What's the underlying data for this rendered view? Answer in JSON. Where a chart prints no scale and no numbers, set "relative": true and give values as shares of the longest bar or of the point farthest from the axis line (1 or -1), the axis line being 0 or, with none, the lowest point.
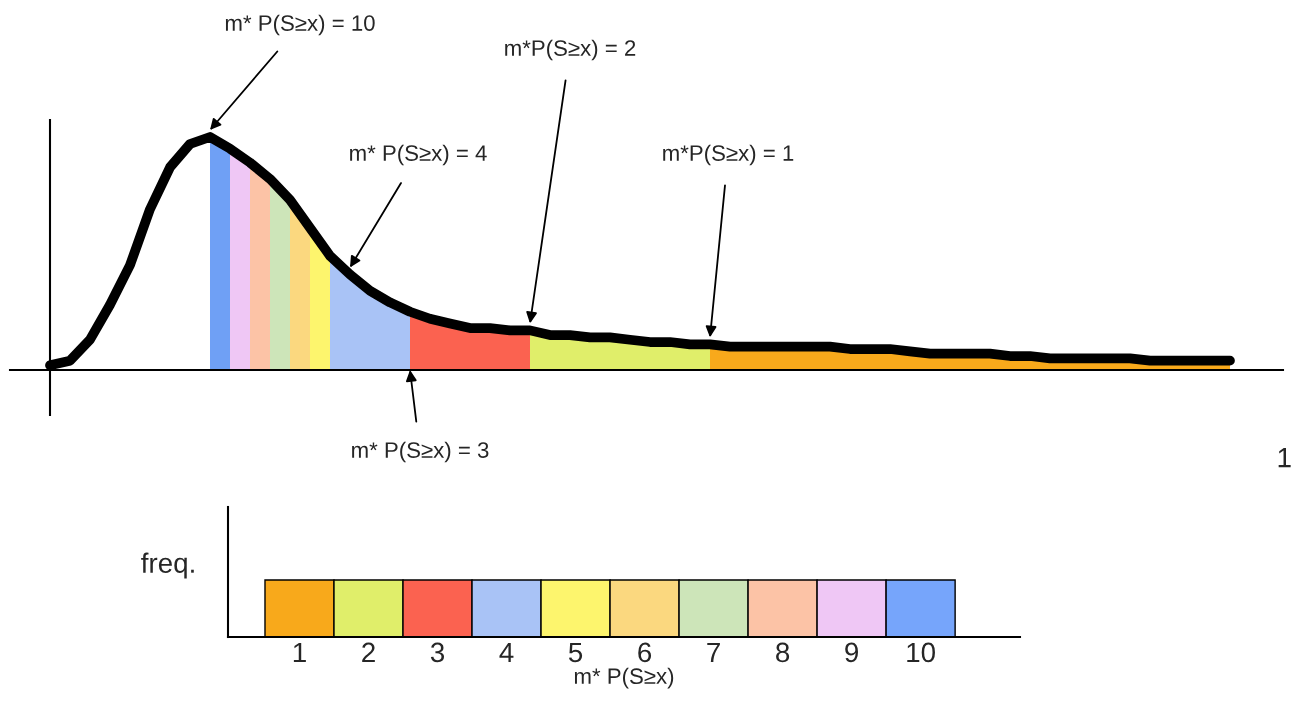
{
  "chart_data": [
    {
      "type": "area",
      "relative": true,
      "tick_labels": false,
      "categories": [
        null,
        null,
        null,
        null,
        null,
        null,
        null,
        null,
        null,
        null,
        null,
        null,
        null,
        null,
        null,
        null,
        null,
        null,
        null,
        null,
        null,
        null,
        null,
        null,
        null,
        null,
        null,
        null,
        null,
        null,
        null,
        null,
        null,
        null,
        null,
        null,
        null,
        null,
        null,
        null,
        null,
        null,
        null,
        null,
        null,
        null,
        null,
        null,
        null,
        null,
        null,
        null,
        null,
        null,
        null,
        null,
        null,
        null,
        null,
        null
      ],
      "series": [
        {
          "type": "line",
          "color": "#000000",
          "values": [
            0.02,
            0.04,
            0.13,
            0.28,
            0.45,
            0.69,
            0.87,
            0.97,
            1.0,
            0.95,
            0.89,
            0.82,
            0.73,
            0.61,
            0.49,
            0.41,
            0.34,
            0.29,
            0.25,
            0.22,
            0.2,
            0.18,
            0.18,
            0.17,
            0.17,
            0.15,
            0.15,
            0.14,
            0.14,
            0.13,
            0.12,
            0.12,
            0.11,
            0.11,
            0.1,
            0.1,
            0.1,
            0.1,
            0.1,
            0.1,
            0.09,
            0.09,
            0.09,
            0.08,
            0.07,
            0.07,
            0.07,
            0.07,
            0.06,
            0.06,
            0.05,
            0.05,
            0.05,
            0.05,
            0.05,
            0.04,
            0.04,
            0.04,
            0.04,
            0.04
          ]
        },
        {
          "color": "#6fa0f5",
          "values": [
            null,
            null,
            null,
            null,
            null,
            null,
            null,
            null,
            1.0,
            0.95,
            null,
            null,
            null,
            null,
            null,
            null,
            null,
            null,
            null,
            null,
            null,
            null,
            null,
            null,
            null,
            null,
            null,
            null,
            null,
            null,
            null,
            null,
            null,
            null,
            null,
            null,
            null,
            null,
            null,
            null,
            null,
            null,
            null,
            null,
            null,
            null,
            null,
            null,
            null,
            null,
            null,
            null,
            null,
            null,
            null,
            null,
            null,
            null,
            null,
            null
          ]
        },
        {
          "color": "#efc7f5",
          "values": [
            null,
            null,
            null,
            null,
            null,
            null,
            null,
            null,
            null,
            0.95,
            0.89,
            null,
            null,
            null,
            null,
            null,
            null,
            null,
            null,
            null,
            null,
            null,
            null,
            null,
            null,
            null,
            null,
            null,
            null,
            null,
            null,
            null,
            null,
            null,
            null,
            null,
            null,
            null,
            null,
            null,
            null,
            null,
            null,
            null,
            null,
            null,
            null,
            null,
            null,
            null,
            null,
            null,
            null,
            null,
            null,
            null,
            null,
            null,
            null,
            null
          ]
        },
        {
          "color": "#fcc3a6",
          "values": [
            null,
            null,
            null,
            null,
            null,
            null,
            null,
            null,
            null,
            null,
            0.89,
            0.82,
            null,
            null,
            null,
            null,
            null,
            null,
            null,
            null,
            null,
            null,
            null,
            null,
            null,
            null,
            null,
            null,
            null,
            null,
            null,
            null,
            null,
            null,
            null,
            null,
            null,
            null,
            null,
            null,
            null,
            null,
            null,
            null,
            null,
            null,
            null,
            null,
            null,
            null,
            null,
            null,
            null,
            null,
            null,
            null,
            null,
            null,
            null,
            null
          ]
        },
        {
          "color": "#cde5b9",
          "values": [
            null,
            null,
            null,
            null,
            null,
            null,
            null,
            null,
            null,
            null,
            null,
            0.82,
            0.73,
            null,
            null,
            null,
            null,
            null,
            null,
            null,
            null,
            null,
            null,
            null,
            null,
            null,
            null,
            null,
            null,
            null,
            null,
            null,
            null,
            null,
            null,
            null,
            null,
            null,
            null,
            null,
            null,
            null,
            null,
            null,
            null,
            null,
            null,
            null,
            null,
            null,
            null,
            null,
            null,
            null,
            null,
            null,
            null,
            null,
            null,
            null
          ]
        },
        {
          "color": "#fbd87f",
          "values": [
            null,
            null,
            null,
            null,
            null,
            null,
            null,
            null,
            null,
            null,
            null,
            null,
            0.73,
            0.61,
            null,
            null,
            null,
            null,
            null,
            null,
            null,
            null,
            null,
            null,
            null,
            null,
            null,
            null,
            null,
            null,
            null,
            null,
            null,
            null,
            null,
            null,
            null,
            null,
            null,
            null,
            null,
            null,
            null,
            null,
            null,
            null,
            null,
            null,
            null,
            null,
            null,
            null,
            null,
            null,
            null,
            null,
            null,
            null,
            null,
            null
          ]
        },
        {
          "color": "#fdf56d",
          "values": [
            null,
            null,
            null,
            null,
            null,
            null,
            null,
            null,
            null,
            null,
            null,
            null,
            null,
            0.61,
            0.49,
            null,
            null,
            null,
            null,
            null,
            null,
            null,
            null,
            null,
            null,
            null,
            null,
            null,
            null,
            null,
            null,
            null,
            null,
            null,
            null,
            null,
            null,
            null,
            null,
            null,
            null,
            null,
            null,
            null,
            null,
            null,
            null,
            null,
            null,
            null,
            null,
            null,
            null,
            null,
            null,
            null,
            null,
            null,
            null,
            null
          ]
        },
        {
          "color": "#a9c3f6",
          "values": [
            null,
            null,
            null,
            null,
            null,
            null,
            null,
            null,
            null,
            null,
            null,
            null,
            null,
            null,
            0.49,
            0.41,
            0.34,
            0.29,
            0.25,
            null,
            null,
            null,
            null,
            null,
            null,
            null,
            null,
            null,
            null,
            null,
            null,
            null,
            null,
            null,
            null,
            null,
            null,
            null,
            null,
            null,
            null,
            null,
            null,
            null,
            null,
            null,
            null,
            null,
            null,
            null,
            null,
            null,
            null,
            null,
            null,
            null,
            null,
            null,
            null,
            null
          ]
        },
        {
          "color": "#fb6250",
          "values": [
            null,
            null,
            null,
            null,
            null,
            null,
            null,
            null,
            null,
            null,
            null,
            null,
            null,
            null,
            null,
            null,
            null,
            null,
            0.25,
            0.22,
            0.2,
            0.18,
            0.18,
            0.17,
            0.17,
            null,
            null,
            null,
            null,
            null,
            null,
            null,
            null,
            null,
            null,
            null,
            null,
            null,
            null,
            null,
            null,
            null,
            null,
            null,
            null,
            null,
            null,
            null,
            null,
            null,
            null,
            null,
            null,
            null,
            null,
            null,
            null,
            null,
            null,
            null
          ]
        },
        {
          "color": "#e0ee6a",
          "values": [
            null,
            null,
            null,
            null,
            null,
            null,
            null,
            null,
            null,
            null,
            null,
            null,
            null,
            null,
            null,
            null,
            null,
            null,
            null,
            null,
            null,
            null,
            null,
            null,
            0.17,
            0.15,
            0.15,
            0.14,
            0.14,
            0.13,
            0.12,
            0.12,
            0.11,
            0.11,
            null,
            null,
            null,
            null,
            null,
            null,
            null,
            null,
            null,
            null,
            null,
            null,
            null,
            null,
            null,
            null,
            null,
            null,
            null,
            null,
            null,
            null,
            null,
            null,
            null,
            null
          ]
        },
        {
          "color": "#f8a91b",
          "values": [
            null,
            null,
            null,
            null,
            null,
            null,
            null,
            null,
            null,
            null,
            null,
            null,
            null,
            null,
            null,
            null,
            null,
            null,
            null,
            null,
            null,
            null,
            null,
            null,
            null,
            null,
            null,
            null,
            null,
            null,
            null,
            null,
            null,
            0.11,
            0.1,
            0.1,
            0.1,
            0.1,
            0.1,
            0.1,
            0.09,
            0.09,
            0.09,
            0.08,
            0.07,
            0.07,
            0.07,
            0.07,
            0.06,
            0.06,
            0.05,
            0.05,
            0.05,
            0.05,
            0.05,
            0.04,
            0.04,
            0.04,
            0.04,
            0.04
          ]
        }
      ],
      "annotations": [
        "m* P(S≥x) = 10",
        "m*P(S≥x) = 2",
        "m* P(S≥x) = 4",
        "m*P(S≥x) = 1",
        "m* P(S≥x) = 3",
        "1"
      ]
    },
    {
      "type": "bar",
      "relative": true,
      "tick_labels": "x",
      "categories": [
        "1",
        "2",
        "3",
        "4",
        "5",
        "6",
        "7",
        "8",
        "9",
        "10"
      ],
      "values": [
        1,
        1,
        1,
        1,
        1,
        1,
        1,
        1,
        1,
        1
      ],
      "colors": [
        "#f8a91b",
        "#e0ee6a",
        "#fb6250",
        "#a9c3f6",
        "#fdf56d",
        "#fbd87f",
        "#cde5b9",
        "#fcc3a6",
        "#efc7f5",
        "#76a5fb"
      ],
      "xlabel": "m* P(S≥x)",
      "ylabel": "freq."
    }
  ]
}
